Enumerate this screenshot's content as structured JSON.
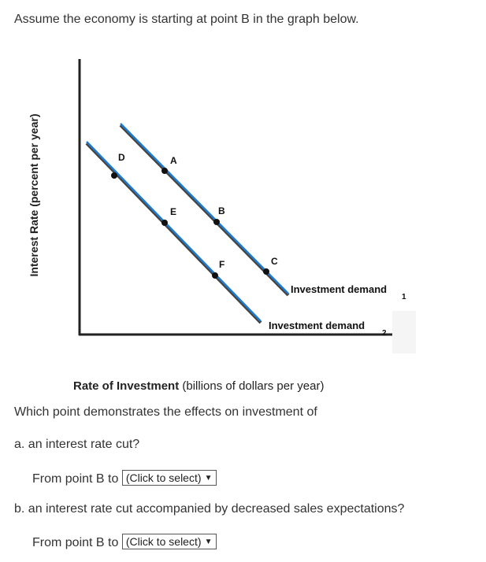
{
  "intro": "Assume the economy is starting at point B in the graph below.",
  "graph": {
    "y_axis_label": "Interest Rate (percent per year)",
    "x_axis_label_bold": "Rate of Investment",
    "x_axis_label_rest": " (billions of dollars per year)",
    "curve1_label": "Investment demand",
    "curve1_sub": "1",
    "curve2_label": "Investment demand",
    "curve2_sub": "2",
    "points": [
      "D",
      "A",
      "E",
      "B",
      "F",
      "C"
    ],
    "curve_color": "#1e7bd0",
    "shadow_color": "#333333"
  },
  "question": "Which point demonstrates the effects on investment of",
  "part_a": {
    "label": "a. an interest rate cut?",
    "prefix": "From point B to",
    "select_value": "(Click to select)"
  },
  "part_b": {
    "label": "b. an interest rate cut accompanied by decreased sales expectations?",
    "prefix": "From point B to",
    "select_value": "(Click to select)"
  }
}
